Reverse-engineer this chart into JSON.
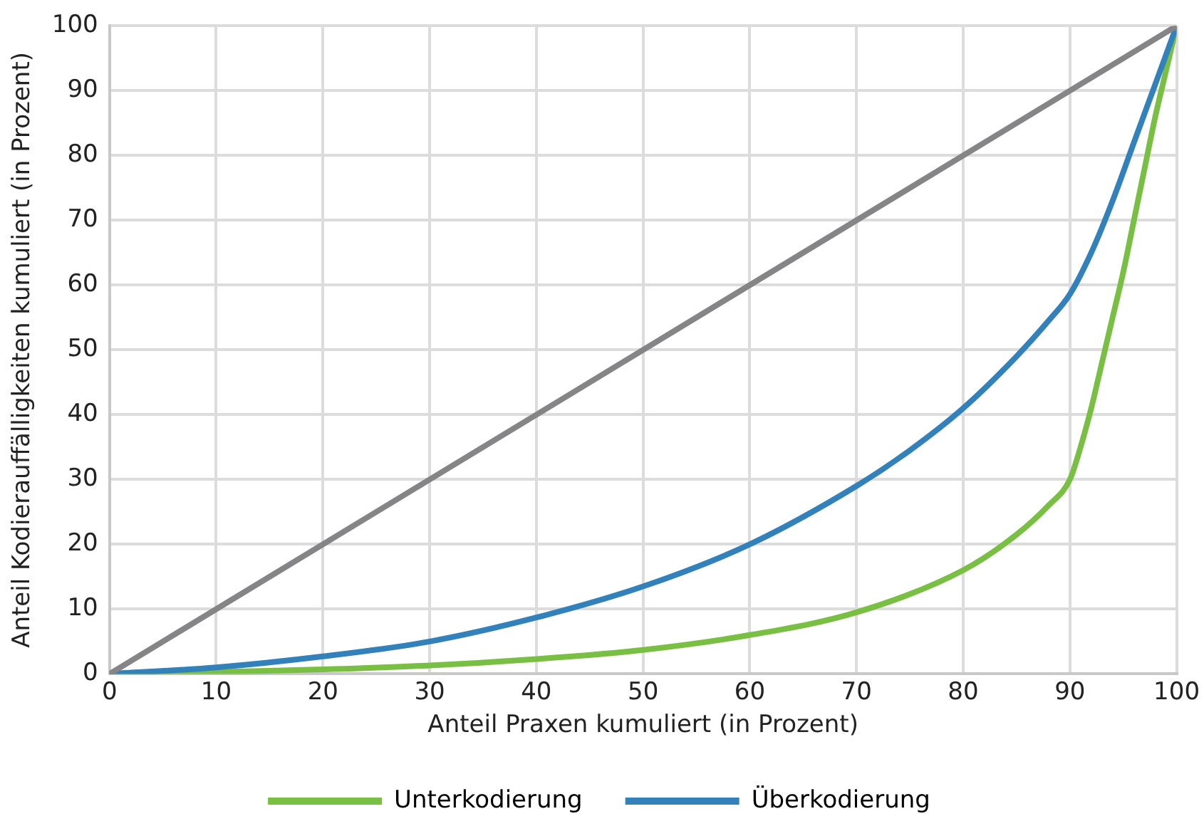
{
  "chart_data": {
    "type": "line",
    "xlabel": "Anteil Praxen kumuliert (in Prozent)",
    "ylabel": "Anteil Kodierauffälligkeiten kumuliert (in Prozent)",
    "xlim": [
      0,
      100
    ],
    "xticks": [
      0,
      10,
      20,
      30,
      40,
      50,
      60,
      70,
      80,
      90,
      100
    ],
    "ylim": [
      0,
      100
    ],
    "yticks": [
      0,
      10,
      20,
      30,
      40,
      50,
      60,
      70,
      80,
      90,
      100
    ],
    "grid": true,
    "legend": "bottom",
    "marker": "none",
    "line_style": "solid",
    "series": [
      {
        "color": "#858587",
        "x": [
          0,
          100
        ],
        "values": [
          0,
          100
        ]
      },
      {
        "name": "Überkodierung",
        "color": "#3281bb",
        "x": [
          0,
          10,
          20,
          30,
          40,
          50,
          60,
          70,
          75,
          80,
          85,
          88,
          90,
          92,
          94,
          96,
          98,
          100
        ],
        "values": [
          0,
          1,
          2.7,
          5,
          8.7,
          13.5,
          20,
          29,
          34.5,
          41,
          49,
          54.5,
          58.6,
          65,
          73,
          82,
          91,
          100
        ]
      },
      {
        "name": "Unterkodierung",
        "color": "#79bf43",
        "x": [
          0,
          10,
          20,
          30,
          40,
          50,
          60,
          70,
          80,
          85,
          88,
          90,
          91,
          92,
          93,
          94,
          95,
          96,
          97,
          98,
          99,
          100
        ],
        "values": [
          0,
          0.3,
          0.7,
          1.3,
          2.3,
          3.7,
          6,
          9.5,
          16,
          21.5,
          26,
          30,
          35,
          41,
          48,
          55,
          62,
          70,
          78,
          86,
          93,
          100
        ]
      }
    ]
  }
}
